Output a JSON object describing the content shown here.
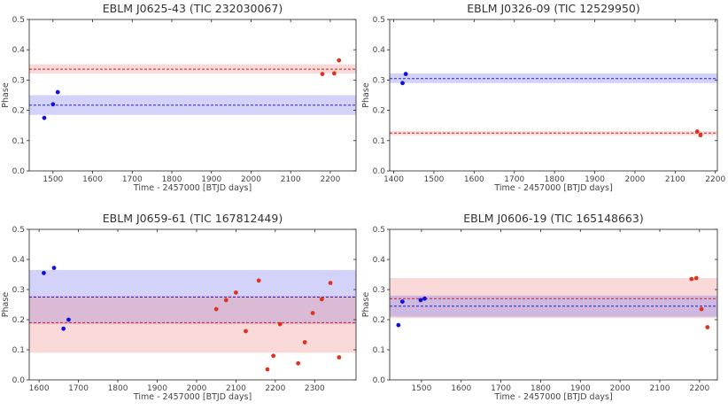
{
  "chart_data": [
    {
      "type": "scatter",
      "title": "EBLM J0625-43 (TIC 232030067)",
      "xlabel": "Time - 2457000 [BTJD days]",
      "ylabel": "Phase",
      "xlim": [
        1440,
        2265
      ],
      "ylim": [
        0,
        0.5
      ],
      "xticks": [
        1500,
        1600,
        1700,
        1800,
        1900,
        2000,
        2100,
        2200
      ],
      "yticks": [
        0.0,
        0.1,
        0.2,
        0.3,
        0.4,
        0.5
      ],
      "bands": [
        {
          "name": "blue",
          "mean": 0.217,
          "low": 0.185,
          "high": 0.25,
          "color": "#6c6cf0"
        },
        {
          "name": "red",
          "mean": 0.336,
          "low": 0.322,
          "high": 0.352,
          "color": "#f08080"
        }
      ],
      "series": [
        {
          "name": "blue",
          "color": "#1111dd",
          "x": [
            1478,
            1500,
            1512
          ],
          "y": [
            0.175,
            0.22,
            0.26
          ]
        },
        {
          "name": "red",
          "color": "#dd3322",
          "x": [
            2180,
            2210,
            2222
          ],
          "y": [
            0.32,
            0.322,
            0.365
          ]
        }
      ]
    },
    {
      "type": "scatter",
      "title": "EBLM J0326-09 (TIC 12529950)",
      "xlabel": "Time - 2457000 [BTJD days]",
      "ylabel": "Phase",
      "xlim": [
        1390,
        2205
      ],
      "ylim": [
        0,
        0.5
      ],
      "xticks": [
        1400,
        1500,
        1600,
        1700,
        1800,
        1900,
        2000,
        2100,
        2200
      ],
      "yticks": [
        0.0,
        0.1,
        0.2,
        0.3,
        0.4,
        0.5
      ],
      "bands": [
        {
          "name": "blue",
          "mean": 0.305,
          "low": 0.29,
          "high": 0.322,
          "color": "#6c6cf0"
        },
        {
          "name": "red",
          "mean": 0.125,
          "low": 0.118,
          "high": 0.131,
          "color": "#f08080"
        }
      ],
      "series": [
        {
          "name": "blue",
          "color": "#1111dd",
          "x": [
            1422,
            1430
          ],
          "y": [
            0.29,
            0.32
          ]
        },
        {
          "name": "red",
          "color": "#dd3322",
          "x": [
            2155,
            2163
          ],
          "y": [
            0.13,
            0.118
          ]
        }
      ]
    },
    {
      "type": "scatter",
      "title": "EBLM J0659-61 (TIC 167812449)",
      "xlabel": "Time - 2457000 [BTJD days]",
      "ylabel": "Phase",
      "xlim": [
        1575,
        2405
      ],
      "ylim": [
        0,
        0.5
      ],
      "xticks": [
        1600,
        1700,
        1800,
        1900,
        2000,
        2100,
        2200,
        2300
      ],
      "yticks": [
        0.0,
        0.1,
        0.2,
        0.3,
        0.4,
        0.5
      ],
      "bands": [
        {
          "name": "blue",
          "mean": 0.275,
          "low": 0.185,
          "high": 0.365,
          "color": "#6c6cf0"
        },
        {
          "name": "red",
          "mean": 0.19,
          "low": 0.09,
          "high": 0.28,
          "color": "#f08080"
        }
      ],
      "series": [
        {
          "name": "blue",
          "color": "#1111dd",
          "x": [
            1612,
            1638,
            1662,
            1675
          ],
          "y": [
            0.355,
            0.372,
            0.17,
            0.2
          ]
        },
        {
          "name": "red",
          "color": "#dd3322",
          "x": [
            2050,
            2075,
            2100,
            2125,
            2158,
            2180,
            2195,
            2212,
            2258,
            2275,
            2295,
            2318,
            2340,
            2362
          ],
          "y": [
            0.235,
            0.265,
            0.29,
            0.162,
            0.33,
            0.035,
            0.08,
            0.185,
            0.055,
            0.125,
            0.222,
            0.268,
            0.322,
            0.075
          ]
        }
      ]
    },
    {
      "type": "scatter",
      "title": "EBLM J0606-19 (TIC 165148663)",
      "xlabel": "Time - 2457000 [BTJD days]",
      "ylabel": "Phase",
      "xlim": [
        1420,
        2245
      ],
      "ylim": [
        0,
        0.5
      ],
      "xticks": [
        1500,
        1600,
        1700,
        1800,
        1900,
        2000,
        2100,
        2200
      ],
      "yticks": [
        0.0,
        0.1,
        0.2,
        0.3,
        0.4,
        0.5
      ],
      "bands": [
        {
          "name": "red",
          "mean": 0.27,
          "low": 0.205,
          "high": 0.338,
          "color": "#f08080"
        },
        {
          "name": "blue",
          "mean": 0.245,
          "low": 0.21,
          "high": 0.28,
          "color": "#6c6cf0"
        }
      ],
      "series": [
        {
          "name": "blue",
          "color": "#1111dd",
          "x": [
            1442,
            1452,
            1498,
            1508
          ],
          "y": [
            0.182,
            0.26,
            0.265,
            0.27
          ]
        },
        {
          "name": "red",
          "color": "#dd3322",
          "x": [
            2180,
            2192,
            2205,
            2220
          ],
          "y": [
            0.335,
            0.338,
            0.235,
            0.175
          ]
        }
      ]
    }
  ]
}
